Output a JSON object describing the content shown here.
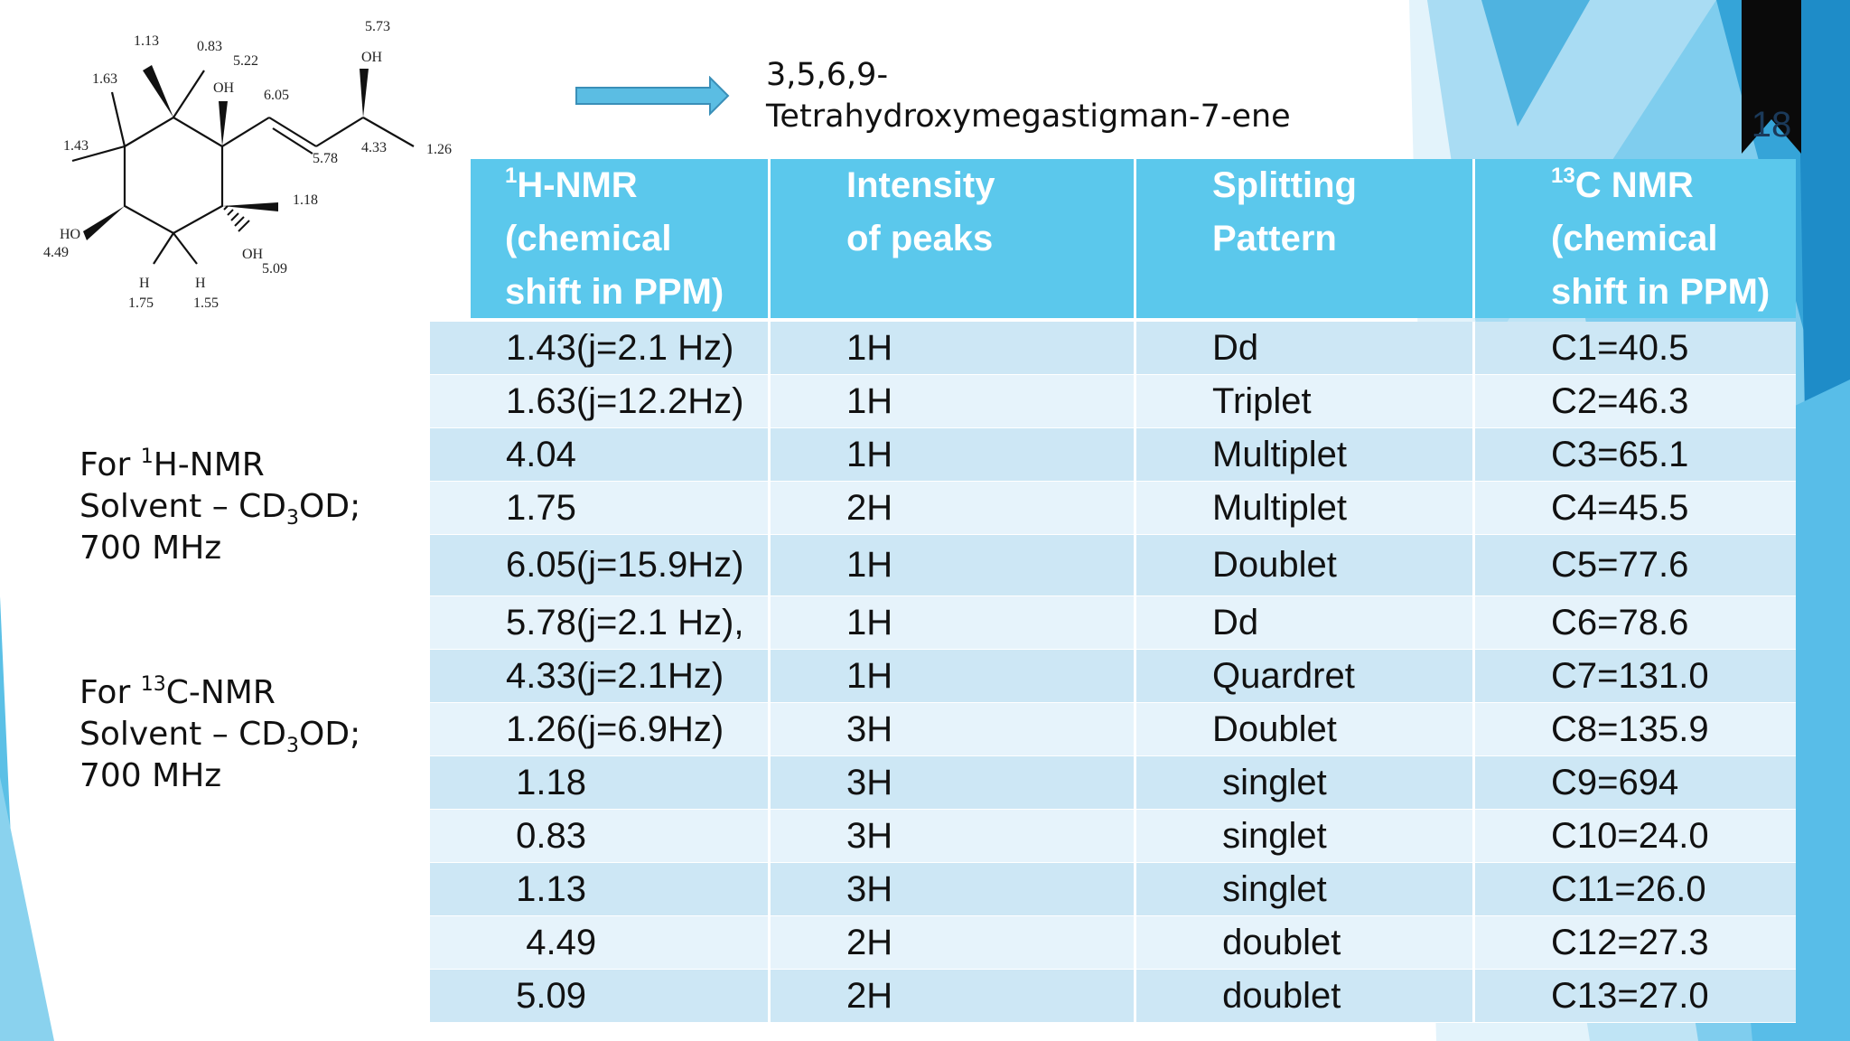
{
  "slide_number": "18",
  "compound_name_line1": "3,5,6,9-",
  "compound_name_line2": "Tetrahydroxymegastigman-7-ene",
  "structure_labels": {
    "l573": "5.73",
    "oh_top": "OH",
    "l113": "1.13",
    "l083": "0.83",
    "l522": "5.22",
    "oh_mid": "OH",
    "l163": "1.63",
    "l605": "6.05",
    "l433": "4.33",
    "l126": "1.26",
    "l578": "5.78",
    "l143": "1.43",
    "l118": "1.18",
    "ho": "HO",
    "l449": "4.49",
    "oh_low": "OH",
    "l509": "5.09",
    "h1": "H",
    "h2": "H",
    "l175": "1.75",
    "l155": "1.55"
  },
  "solvent_1h": {
    "prefix": "For ",
    "iso": "1",
    "nucleus": "H-NMR",
    "solvent_label": "Solvent – CD",
    "solvent_sub": "3",
    "solvent_suffix": "OD;",
    "freq": "700 MHz"
  },
  "solvent_13c": {
    "prefix": "For ",
    "iso": "13",
    "nucleus": "C-NMR",
    "solvent_label": "Solvent – CD",
    "solvent_sub": "3",
    "solvent_suffix": "OD;",
    "freq": "700 MHz"
  },
  "table": {
    "headers": {
      "h1_sup": "1",
      "h1_l1": "H-NMR",
      "h1_l2": "(chemical",
      "h1_l3": "shift in PPM)",
      "h2_l1": "Intensity",
      "h2_l2": "of peaks",
      "h3_l1": "Splitting",
      "h3_l2": "Pattern",
      "h4_sup": "13",
      "h4_l1": "C NMR",
      "h4_l2": "(chemical",
      "h4_l3": "shift in PPM)"
    },
    "rows": [
      {
        "shift": "1.43(j=2.1 Hz)",
        "intensity": "1H",
        "splitting": "Dd",
        "c13": "C1=40.5"
      },
      {
        "shift": "1.63(j=12.2Hz)",
        "intensity": "1H",
        "splitting": "Triplet",
        "c13": "C2=46.3"
      },
      {
        "shift": "4.04",
        "intensity": "1H",
        "splitting": "Multiplet",
        "c13": "C3=65.1"
      },
      {
        "shift": "1.75",
        "intensity": "2H",
        "splitting": "Multiplet",
        "c13": "C4=45.5"
      },
      {
        "shift": "6.05(j=15.9Hz)",
        "intensity": "1H",
        "splitting": "Doublet",
        "c13": "C5=77.6"
      },
      {
        "shift": "5.78(j=2.1 Hz),",
        "intensity": "1H",
        "splitting": "Dd",
        "c13": "C6=78.6"
      },
      {
        "shift": "4.33(j=2.1Hz)",
        "intensity": "1H",
        "splitting": "Quardret",
        "c13": "C7=131.0"
      },
      {
        "shift": "1.26(j=6.9Hz)",
        "intensity": "3H",
        "splitting": "Doublet",
        "c13": "C8=135.9"
      },
      {
        "shift": " 1.18",
        "intensity": "3H",
        "splitting": " singlet",
        "c13": "C9=694"
      },
      {
        "shift": " 0.83",
        "intensity": "3H",
        "splitting": " singlet",
        "c13": "C10=24.0"
      },
      {
        "shift": " 1.13",
        "intensity": "3H",
        "splitting": " singlet",
        "c13": "C11=26.0"
      },
      {
        "shift": "  4.49",
        "intensity": "2H",
        "splitting": " doublet",
        "c13": "C12=27.3"
      },
      {
        "shift": " 5.09",
        "intensity": "2H",
        "splitting": " doublet",
        "c13": "C13=27.0"
      }
    ]
  },
  "colors": {
    "header_blue": "#5bc8ec",
    "row_odd": "#cde7f5",
    "row_even": "#e6f3fb",
    "arrow_fill": "#5bbde3",
    "bookmark": "#0a0a0a"
  }
}
